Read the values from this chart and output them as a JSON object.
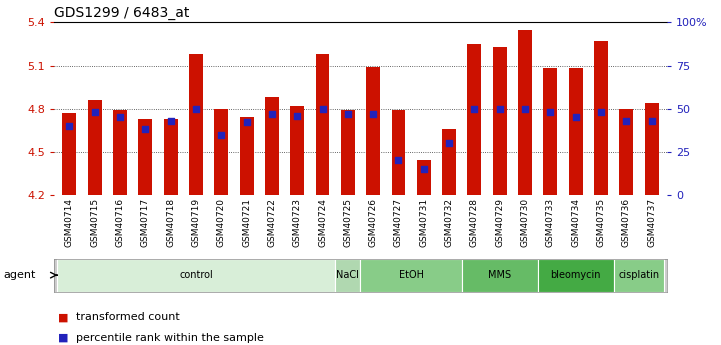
{
  "title": "GDS1299 / 6483_at",
  "samples": [
    "GSM40714",
    "GSM40715",
    "GSM40716",
    "GSM40717",
    "GSM40718",
    "GSM40719",
    "GSM40720",
    "GSM40721",
    "GSM40722",
    "GSM40723",
    "GSM40724",
    "GSM40725",
    "GSM40726",
    "GSM40727",
    "GSM40731",
    "GSM40732",
    "GSM40728",
    "GSM40729",
    "GSM40730",
    "GSM40733",
    "GSM40734",
    "GSM40735",
    "GSM40736",
    "GSM40737"
  ],
  "red_values": [
    4.77,
    4.86,
    4.79,
    4.73,
    4.73,
    5.18,
    4.8,
    4.74,
    4.88,
    4.82,
    5.18,
    4.79,
    5.09,
    4.79,
    4.44,
    4.66,
    5.25,
    5.23,
    5.35,
    5.08,
    5.08,
    5.27,
    4.8,
    4.84
  ],
  "blue_percentile": [
    40,
    48,
    45,
    38,
    43,
    50,
    35,
    42,
    47,
    46,
    50,
    47,
    47,
    20,
    15,
    30,
    50,
    50,
    50,
    48,
    45,
    48,
    43,
    43
  ],
  "ylim_left": [
    4.2,
    5.4
  ],
  "ylim_right": [
    0,
    100
  ],
  "yticks_left": [
    4.2,
    4.5,
    4.8,
    5.1,
    5.4
  ],
  "yticks_right": [
    0,
    25,
    50,
    75,
    100
  ],
  "ytick_labels_right": [
    "0",
    "25",
    "50",
    "75",
    "100%"
  ],
  "bar_color": "#cc1100",
  "dot_color": "#2222bb",
  "background_color": "#ffffff",
  "plot_bg_color": "#ffffff",
  "gridline_color": "#333333",
  "bar_width": 0.55,
  "dot_size": 18,
  "xlabel_fontsize": 6.5,
  "ylabel_left_color": "#cc1100",
  "ylabel_right_color": "#2222bb",
  "title_fontsize": 10,
  "legend_fontsize": 8,
  "tick_fontsize": 8,
  "agent_groups": [
    {
      "label": "control",
      "start": 0,
      "end": 10,
      "color": "#d8eed8"
    },
    {
      "label": "NaCl",
      "start": 11,
      "end": 11,
      "color": "#b0d8b0"
    },
    {
      "label": "EtOH",
      "start": 12,
      "end": 15,
      "color": "#88cc88"
    },
    {
      "label": "MMS",
      "start": 16,
      "end": 18,
      "color": "#66bb66"
    },
    {
      "label": "bleomycin",
      "start": 19,
      "end": 21,
      "color": "#44aa44"
    },
    {
      "label": "cisplatin",
      "start": 22,
      "end": 23,
      "color": "#88cc88"
    }
  ]
}
